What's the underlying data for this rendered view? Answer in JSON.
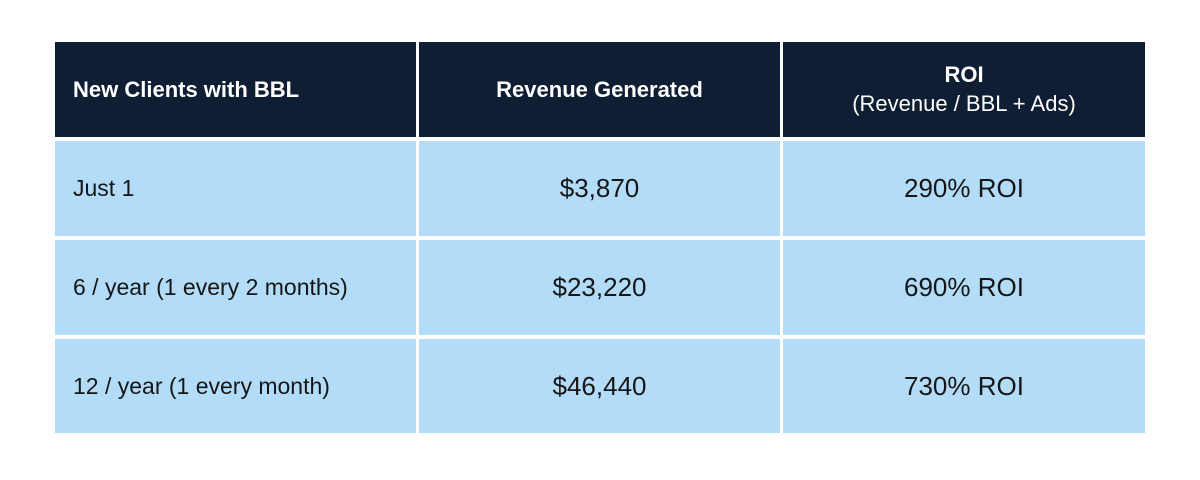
{
  "table": {
    "headers": {
      "clients": "New Clients with BBL",
      "revenue": "Revenue Generated",
      "roi_title": "ROI",
      "roi_subtitle": "(Revenue / BBL + Ads)"
    },
    "rows": [
      {
        "clients": "Just 1",
        "revenue": "$3,870",
        "roi": "290% ROI"
      },
      {
        "clients": "6 / year (1 every 2 months)",
        "revenue": "$23,220",
        "roi": "690% ROI"
      },
      {
        "clients": "12 / year (1 every month)",
        "revenue": "$46,440",
        "roi": "730% ROI"
      }
    ]
  },
  "colors": {
    "header_bg": "#0f1e33",
    "row_bg": "#b3dcf8",
    "header_text": "#ffffff",
    "body_text": "#161616"
  }
}
